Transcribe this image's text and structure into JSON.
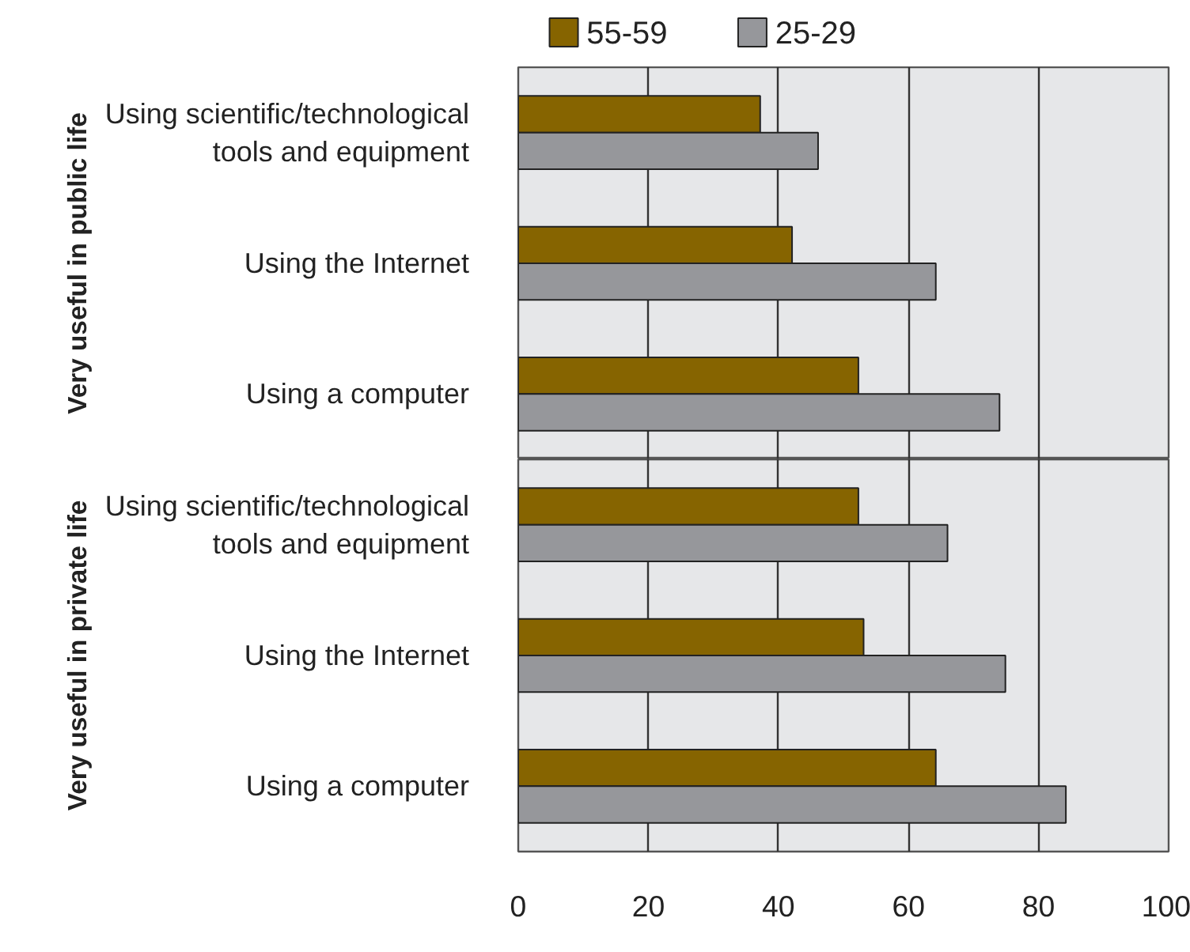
{
  "chart_data": [
    {
      "type": "bar",
      "orientation": "horizontal",
      "ylabel": "Very useful in public life",
      "categories": [
        "Using scientific/technological tools and equipment",
        "Using the Internet",
        "Using a computer"
      ],
      "series": [
        {
          "name": "55-59",
          "color": "#866400",
          "values": [
            37.2,
            42.1,
            52.3
          ]
        },
        {
          "name": "25-29",
          "color": "#96979b",
          "values": [
            46.1,
            64.2,
            74.0
          ]
        }
      ],
      "xlim": [
        0,
        100
      ],
      "xticks": [
        0,
        20,
        40,
        60,
        80,
        100
      ],
      "tick_labels": "y",
      "grid": "x",
      "legend": "top"
    },
    {
      "type": "bar",
      "orientation": "horizontal",
      "ylabel": "Very useful in private life",
      "categories": [
        "Using scientific/technological tools and equipment",
        "Using the Internet",
        "Using a computer"
      ],
      "series": [
        {
          "color": "#866400",
          "values": [
            52.3,
            53.1,
            64.2
          ]
        },
        {
          "color": "#96979b",
          "values": [
            66.0,
            74.9,
            84.2
          ]
        }
      ],
      "xlim": [
        0,
        100
      ],
      "xticks": [
        0,
        20,
        40,
        60,
        80,
        100
      ],
      "grid": "x"
    }
  ]
}
